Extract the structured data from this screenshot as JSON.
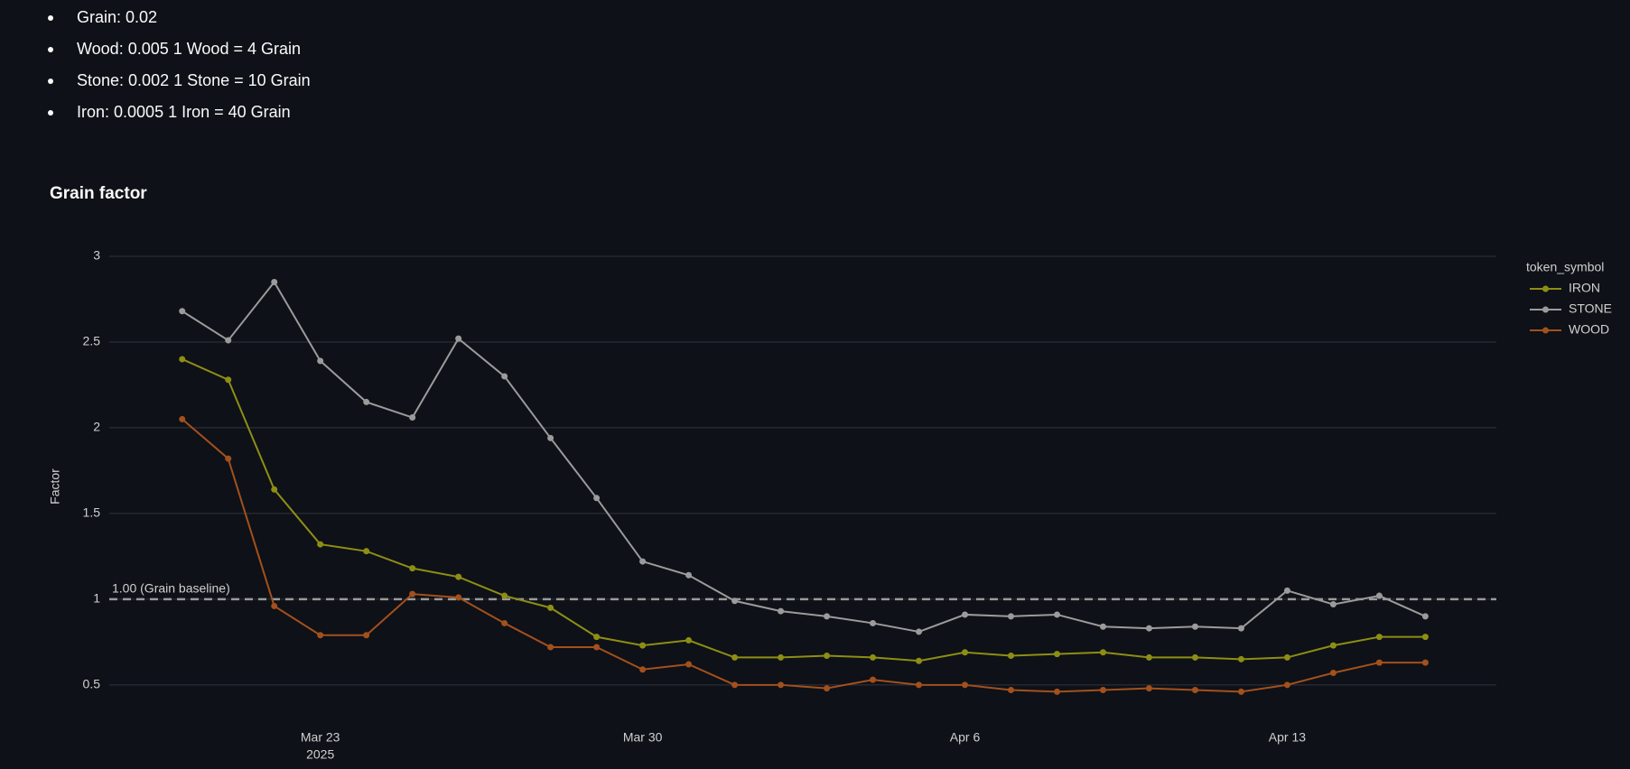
{
  "bullets": [
    "Grain: 0.02",
    "Wood: 0.005 1 Wood = 4 Grain",
    "Stone: 0.002 1 Stone = 10 Grain",
    "Iron: 0.0005 1 Iron = 40 Grain"
  ],
  "chart_data": {
    "type": "line",
    "title": "Grain factor",
    "y_label": "Factor",
    "legend_title": "token_symbol",
    "legend": "right",
    "grid": true,
    "x": [
      "2025-03-20",
      "2025-03-21",
      "2025-03-22",
      "2025-03-23",
      "2025-03-24",
      "2025-03-25",
      "2025-03-26",
      "2025-03-27",
      "2025-03-28",
      "2025-03-29",
      "2025-03-30",
      "2025-03-31",
      "2025-04-01",
      "2025-04-02",
      "2025-04-03",
      "2025-04-04",
      "2025-04-05",
      "2025-04-06",
      "2025-04-07",
      "2025-04-08",
      "2025-04-09",
      "2025-04-10",
      "2025-04-11",
      "2025-04-12",
      "2025-04-13",
      "2025-04-14",
      "2025-04-15",
      "2025-04-16"
    ],
    "xlim": [
      "2025-03-18T10:00Z",
      "2025-04-17T13:00Z"
    ],
    "xticks": [
      {
        "value": "2025-03-23",
        "label": "Mar 23",
        "sublabel": "2025"
      },
      {
        "value": "2025-03-30",
        "label": "Mar 30"
      },
      {
        "value": "2025-04-06",
        "label": "Apr 6"
      },
      {
        "value": "2025-04-13",
        "label": "Apr 13"
      }
    ],
    "ylim": [
      0.32,
      3.1
    ],
    "yticks": [
      0.5,
      1,
      1.5,
      2,
      2.5,
      3
    ],
    "baseline": {
      "value": 1,
      "label": "1.00 (Grain baseline)"
    },
    "series": [
      {
        "name": "IRON",
        "color": "#8e8e14",
        "values": [
          2.4,
          2.28,
          1.64,
          1.32,
          1.28,
          1.18,
          1.13,
          1.02,
          0.95,
          0.78,
          0.73,
          0.76,
          0.66,
          0.66,
          0.67,
          0.66,
          0.64,
          0.69,
          0.67,
          0.68,
          0.69,
          0.66,
          0.66,
          0.65,
          0.66,
          0.73,
          0.78,
          0.78
        ]
      },
      {
        "name": "STONE",
        "color": "#9b9b9b",
        "values": [
          2.68,
          2.51,
          2.85,
          2.39,
          2.15,
          2.06,
          2.52,
          2.3,
          1.94,
          1.59,
          1.22,
          1.14,
          0.99,
          0.93,
          0.9,
          0.86,
          0.81,
          0.91,
          0.9,
          0.91,
          0.84,
          0.83,
          0.84,
          0.83,
          1.05,
          0.97,
          1.02,
          0.9
        ]
      },
      {
        "name": "WOOD",
        "color": "#a3501d",
        "values": [
          2.05,
          1.82,
          0.96,
          0.79,
          0.79,
          1.03,
          1.01,
          0.86,
          0.72,
          0.72,
          0.59,
          0.62,
          0.5,
          0.5,
          0.48,
          0.53,
          0.5,
          0.5,
          0.47,
          0.46,
          0.47,
          0.48,
          0.47,
          0.46,
          0.5,
          0.57,
          0.63,
          0.63
        ]
      }
    ]
  }
}
